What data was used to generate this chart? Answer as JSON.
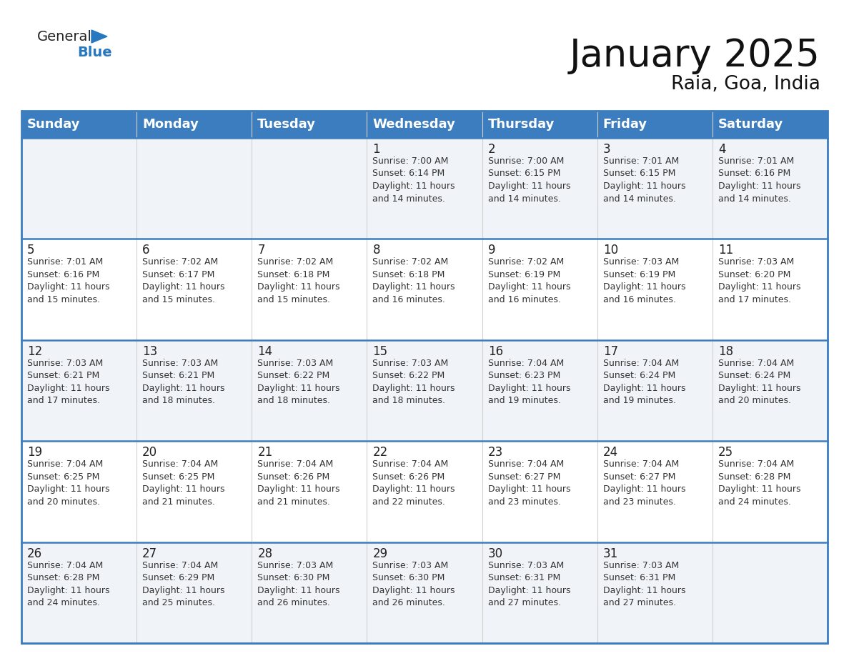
{
  "title": "January 2025",
  "subtitle": "Raia, Goa, India",
  "header_bg_color": "#3c7dbf",
  "header_text_color": "#ffffff",
  "row_colors": [
    "#f0f4f8",
    "#ffffff",
    "#f0f4f8",
    "#ffffff",
    "#f0f4f8"
  ],
  "border_color": "#3c7dbf",
  "sep_color": "#3c7dbf",
  "cell_border_color": "#d0d0d0",
  "text_color": "#333333",
  "logo_general_color": "#222222",
  "logo_blue_color": "#2878c0",
  "logo_triangle_color": "#2878c0",
  "day_headers": [
    "Sunday",
    "Monday",
    "Tuesday",
    "Wednesday",
    "Thursday",
    "Friday",
    "Saturday"
  ],
  "title_fontsize": 38,
  "subtitle_fontsize": 19,
  "header_fontsize": 13,
  "day_num_fontsize": 12,
  "cell_text_fontsize": 9,
  "logo_fontsize": 14,
  "calendar": [
    [
      {
        "day": "",
        "text": ""
      },
      {
        "day": "",
        "text": ""
      },
      {
        "day": "",
        "text": ""
      },
      {
        "day": "1",
        "text": "Sunrise: 7:00 AM\nSunset: 6:14 PM\nDaylight: 11 hours\nand 14 minutes."
      },
      {
        "day": "2",
        "text": "Sunrise: 7:00 AM\nSunset: 6:15 PM\nDaylight: 11 hours\nand 14 minutes."
      },
      {
        "day": "3",
        "text": "Sunrise: 7:01 AM\nSunset: 6:15 PM\nDaylight: 11 hours\nand 14 minutes."
      },
      {
        "day": "4",
        "text": "Sunrise: 7:01 AM\nSunset: 6:16 PM\nDaylight: 11 hours\nand 14 minutes."
      }
    ],
    [
      {
        "day": "5",
        "text": "Sunrise: 7:01 AM\nSunset: 6:16 PM\nDaylight: 11 hours\nand 15 minutes."
      },
      {
        "day": "6",
        "text": "Sunrise: 7:02 AM\nSunset: 6:17 PM\nDaylight: 11 hours\nand 15 minutes."
      },
      {
        "day": "7",
        "text": "Sunrise: 7:02 AM\nSunset: 6:18 PM\nDaylight: 11 hours\nand 15 minutes."
      },
      {
        "day": "8",
        "text": "Sunrise: 7:02 AM\nSunset: 6:18 PM\nDaylight: 11 hours\nand 16 minutes."
      },
      {
        "day": "9",
        "text": "Sunrise: 7:02 AM\nSunset: 6:19 PM\nDaylight: 11 hours\nand 16 minutes."
      },
      {
        "day": "10",
        "text": "Sunrise: 7:03 AM\nSunset: 6:19 PM\nDaylight: 11 hours\nand 16 minutes."
      },
      {
        "day": "11",
        "text": "Sunrise: 7:03 AM\nSunset: 6:20 PM\nDaylight: 11 hours\nand 17 minutes."
      }
    ],
    [
      {
        "day": "12",
        "text": "Sunrise: 7:03 AM\nSunset: 6:21 PM\nDaylight: 11 hours\nand 17 minutes."
      },
      {
        "day": "13",
        "text": "Sunrise: 7:03 AM\nSunset: 6:21 PM\nDaylight: 11 hours\nand 18 minutes."
      },
      {
        "day": "14",
        "text": "Sunrise: 7:03 AM\nSunset: 6:22 PM\nDaylight: 11 hours\nand 18 minutes."
      },
      {
        "day": "15",
        "text": "Sunrise: 7:03 AM\nSunset: 6:22 PM\nDaylight: 11 hours\nand 18 minutes."
      },
      {
        "day": "16",
        "text": "Sunrise: 7:04 AM\nSunset: 6:23 PM\nDaylight: 11 hours\nand 19 minutes."
      },
      {
        "day": "17",
        "text": "Sunrise: 7:04 AM\nSunset: 6:24 PM\nDaylight: 11 hours\nand 19 minutes."
      },
      {
        "day": "18",
        "text": "Sunrise: 7:04 AM\nSunset: 6:24 PM\nDaylight: 11 hours\nand 20 minutes."
      }
    ],
    [
      {
        "day": "19",
        "text": "Sunrise: 7:04 AM\nSunset: 6:25 PM\nDaylight: 11 hours\nand 20 minutes."
      },
      {
        "day": "20",
        "text": "Sunrise: 7:04 AM\nSunset: 6:25 PM\nDaylight: 11 hours\nand 21 minutes."
      },
      {
        "day": "21",
        "text": "Sunrise: 7:04 AM\nSunset: 6:26 PM\nDaylight: 11 hours\nand 21 minutes."
      },
      {
        "day": "22",
        "text": "Sunrise: 7:04 AM\nSunset: 6:26 PM\nDaylight: 11 hours\nand 22 minutes."
      },
      {
        "day": "23",
        "text": "Sunrise: 7:04 AM\nSunset: 6:27 PM\nDaylight: 11 hours\nand 23 minutes."
      },
      {
        "day": "24",
        "text": "Sunrise: 7:04 AM\nSunset: 6:27 PM\nDaylight: 11 hours\nand 23 minutes."
      },
      {
        "day": "25",
        "text": "Sunrise: 7:04 AM\nSunset: 6:28 PM\nDaylight: 11 hours\nand 24 minutes."
      }
    ],
    [
      {
        "day": "26",
        "text": "Sunrise: 7:04 AM\nSunset: 6:28 PM\nDaylight: 11 hours\nand 24 minutes."
      },
      {
        "day": "27",
        "text": "Sunrise: 7:04 AM\nSunset: 6:29 PM\nDaylight: 11 hours\nand 25 minutes."
      },
      {
        "day": "28",
        "text": "Sunrise: 7:03 AM\nSunset: 6:30 PM\nDaylight: 11 hours\nand 26 minutes."
      },
      {
        "day": "29",
        "text": "Sunrise: 7:03 AM\nSunset: 6:30 PM\nDaylight: 11 hours\nand 26 minutes."
      },
      {
        "day": "30",
        "text": "Sunrise: 7:03 AM\nSunset: 6:31 PM\nDaylight: 11 hours\nand 27 minutes."
      },
      {
        "day": "31",
        "text": "Sunrise: 7:03 AM\nSunset: 6:31 PM\nDaylight: 11 hours\nand 27 minutes."
      },
      {
        "day": "",
        "text": ""
      }
    ]
  ]
}
